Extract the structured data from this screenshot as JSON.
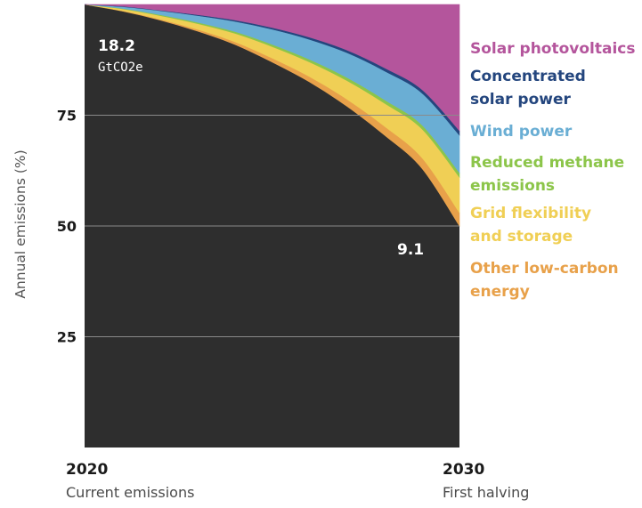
{
  "chart_data": {
    "type": "area",
    "ylabel": "Annual emissions (%)",
    "ylim": [
      0,
      100
    ],
    "yticks": [
      "25",
      "50",
      "75"
    ],
    "x": [
      2020,
      2021,
      2022,
      2023,
      2024,
      2025,
      2026,
      2027,
      2028,
      2029,
      2030
    ],
    "xlabels": [
      {
        "year": "2020",
        "sub": "Current emissions"
      },
      {
        "year": "2030",
        "sub": "First halving"
      }
    ],
    "annotations": {
      "start_value": "18.2",
      "start_unit": "GtCO2e",
      "end_value": "9.1"
    },
    "remaining_emissions": [
      100,
      98.5,
      96.5,
      94,
      91,
      87,
      82.5,
      77,
      70.5,
      63,
      50
    ],
    "series": [
      {
        "name": "Other low-carbon energy",
        "color": "#e8a14a",
        "values": [
          0,
          0.1,
          0.2,
          0.4,
          0.6,
          0.9,
          1.2,
          1.6,
          2.0,
          2.4,
          3.0
        ]
      },
      {
        "name": "Grid flexibility and storage",
        "color": "#f0cf55",
        "values": [
          0,
          0.4,
          0.8,
          1.3,
          1.9,
          2.6,
          3.3,
          4.2,
          5.2,
          6.5,
          8.0
        ]
      },
      {
        "name": "Reduced methane emissions",
        "color": "#8cc54a",
        "values": [
          0,
          0.1,
          0.2,
          0.3,
          0.4,
          0.5,
          0.6,
          0.7,
          0.8,
          0.9,
          1.0
        ]
      },
      {
        "name": "Wind power",
        "color": "#6aaed4",
        "values": [
          0,
          0.4,
          0.9,
          1.5,
          2.3,
          3.4,
          4.5,
          5.6,
          6.5,
          7.2,
          8.5
        ]
      },
      {
        "name": "Concentrated solar power",
        "color": "#24467e",
        "values": [
          0,
          0.1,
          0.1,
          0.2,
          0.3,
          0.4,
          0.5,
          0.6,
          0.7,
          0.8,
          1.0
        ]
      },
      {
        "name": "Solar photovoltaics",
        "color": "#b4559c",
        "values": [
          0,
          0.4,
          1.3,
          2.3,
          3.5,
          5.2,
          7.4,
          10.3,
          14.3,
          19.2,
          28.5
        ]
      }
    ],
    "legend": [
      {
        "lines": [
          "Solar photovoltaics"
        ],
        "color": "#b4559c"
      },
      {
        "lines": [
          "Concentrated",
          "solar power"
        ],
        "color": "#24467e"
      },
      {
        "lines": [
          "Wind power"
        ],
        "color": "#6aaed4"
      },
      {
        "lines": [
          "Reduced methane",
          "emissions"
        ],
        "color": "#8cc54a"
      },
      {
        "lines": [
          "Grid flexibility",
          "and storage"
        ],
        "color": "#f0cf55"
      },
      {
        "lines": [
          "Other low-carbon",
          "energy"
        ],
        "color": "#e8a14a"
      }
    ],
    "remaining_color": "#2e2e2e",
    "grid": true,
    "legend_placement": "right"
  }
}
